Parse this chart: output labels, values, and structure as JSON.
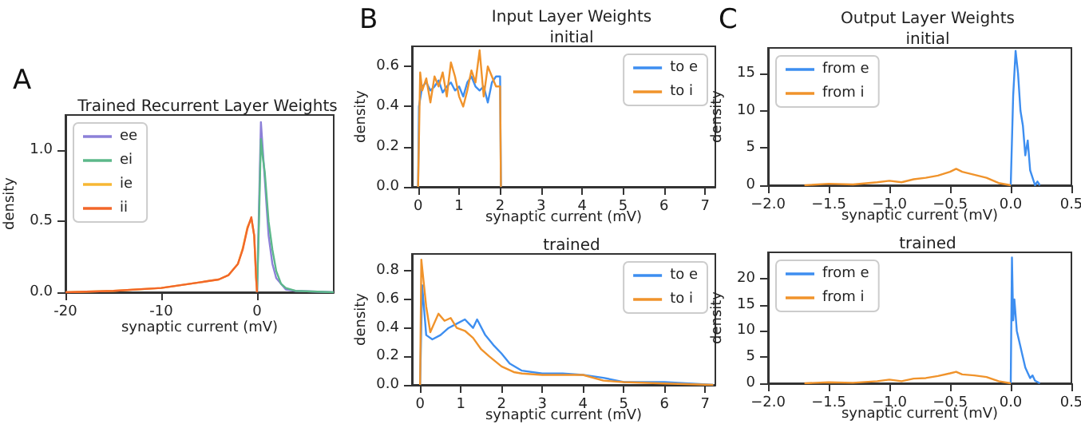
{
  "chart_data": [
    {
      "type": "line",
      "title": "Trained Recurrent Layer Weights",
      "xlabel": "synaptic current (mV)",
      "ylabel": "density",
      "annotations": [
        "A"
      ],
      "legend": "top left",
      "grid": false,
      "xlim": [
        -20,
        8
      ],
      "xticks": [
        -20,
        -10,
        0
      ],
      "ylim": [
        0,
        1.25
      ],
      "yticks": [
        {
          "value": 0,
          "label": "0.0"
        },
        {
          "value": 0.5,
          "label": "0.5"
        },
        {
          "value": 1,
          "label": "1.0"
        }
      ],
      "series": [
        {
          "name": "ee",
          "color": "#8c80d8",
          "x": [
            0,
            0.2,
            0.4,
            0.6,
            0.8,
            1.2,
            1.6,
            2,
            3,
            4,
            8
          ],
          "values": [
            0,
            0.6,
            1.2,
            1.0,
            0.8,
            0.4,
            0.2,
            0.1,
            0.02,
            0.01,
            0
          ]
        },
        {
          "name": "ei",
          "color": "#5cb88a",
          "x": [
            0,
            0.2,
            0.4,
            0.6,
            0.8,
            1.2,
            1.6,
            2,
            2.5,
            3,
            4,
            8
          ],
          "values": [
            0,
            0.5,
            1.08,
            0.95,
            0.85,
            0.5,
            0.3,
            0.15,
            0.06,
            0.03,
            0.01,
            0
          ]
        },
        {
          "name": "ie",
          "color": "#f7b733",
          "x": [
            -20,
            -15,
            -10,
            -8,
            -6,
            -5,
            -4,
            -3,
            -2,
            -1.5,
            -1,
            -0.6,
            -0.3,
            -0.1,
            0
          ],
          "values": [
            0,
            0.01,
            0.03,
            0.05,
            0.07,
            0.08,
            0.09,
            0.12,
            0.2,
            0.31,
            0.46,
            0.52,
            0.4,
            0.1,
            0
          ]
        },
        {
          "name": "ii",
          "color": "#f2672a",
          "x": [
            -20,
            -15,
            -10,
            -8,
            -6,
            -5,
            -4,
            -3,
            -2,
            -1.5,
            -1,
            -0.6,
            -0.3,
            -0.1,
            0
          ],
          "values": [
            0,
            0.01,
            0.03,
            0.05,
            0.07,
            0.08,
            0.09,
            0.12,
            0.2,
            0.3,
            0.45,
            0.53,
            0.4,
            0.1,
            0
          ]
        }
      ]
    },
    {
      "type": "line",
      "title": "Input Layer Weights",
      "subtitle": "initial",
      "xlabel": "synaptic current (mV)",
      "ylabel": "density",
      "annotations": [
        "B"
      ],
      "legend": "top right",
      "grid": false,
      "xlim": [
        -0.15,
        7.25
      ],
      "xticks": [
        0,
        1,
        2,
        3,
        4,
        5,
        6,
        7
      ],
      "ylim": [
        0,
        0.7
      ],
      "yticks": [
        {
          "value": 0,
          "label": "0.0"
        },
        {
          "value": 0.2,
          "label": "0.2"
        },
        {
          "value": 0.4,
          "label": "0.4"
        },
        {
          "value": 0.6,
          "label": "0.6"
        }
      ],
      "series": [
        {
          "name": "to e",
          "color": "#3d8ef0",
          "x": [
            0,
            0.02,
            0.1,
            0.2,
            0.3,
            0.4,
            0.5,
            0.6,
            0.7,
            0.8,
            0.9,
            1.0,
            1.1,
            1.2,
            1.3,
            1.4,
            1.5,
            1.6,
            1.7,
            1.8,
            1.9,
            2.0,
            2.02
          ],
          "values": [
            0,
            0.4,
            0.5,
            0.52,
            0.48,
            0.5,
            0.53,
            0.47,
            0.5,
            0.52,
            0.48,
            0.5,
            0.45,
            0.52,
            0.55,
            0.5,
            0.48,
            0.5,
            0.42,
            0.52,
            0.55,
            0.55,
            0
          ]
        },
        {
          "name": "to i",
          "color": "#f0932b",
          "x": [
            0,
            0.05,
            0.1,
            0.2,
            0.3,
            0.4,
            0.5,
            0.6,
            0.7,
            0.8,
            0.9,
            1.0,
            1.1,
            1.2,
            1.3,
            1.4,
            1.5,
            1.6,
            1.7,
            1.8,
            1.9,
            2.0,
            2.02
          ],
          "values": [
            0,
            0.57,
            0.48,
            0.54,
            0.42,
            0.55,
            0.5,
            0.57,
            0.45,
            0.62,
            0.55,
            0.45,
            0.4,
            0.48,
            0.58,
            0.52,
            0.68,
            0.45,
            0.6,
            0.55,
            0.5,
            0.5,
            0
          ]
        }
      ]
    },
    {
      "type": "line",
      "title": "trained",
      "xlabel": "synaptic current (mV)",
      "ylabel": "density",
      "legend": "top right",
      "grid": false,
      "xlim": [
        -0.2,
        7.25
      ],
      "xticks": [
        0,
        1,
        2,
        3,
        4,
        5,
        6,
        7
      ],
      "ylim": [
        0,
        0.92
      ],
      "yticks": [
        {
          "value": 0,
          "label": "0.0"
        },
        {
          "value": 0.2,
          "label": "0.2"
        },
        {
          "value": 0.4,
          "label": "0.4"
        },
        {
          "value": 0.6,
          "label": "0.6"
        },
        {
          "value": 0.8,
          "label": "0.8"
        }
      ],
      "series": [
        {
          "name": "to e",
          "color": "#3d8ef0",
          "x": [
            0,
            0.05,
            0.15,
            0.3,
            0.5,
            0.7,
            0.9,
            1.1,
            1.3,
            1.4,
            1.6,
            1.8,
            2,
            2.2,
            2.5,
            3,
            3.5,
            4,
            4.5,
            5,
            6,
            7.2
          ],
          "values": [
            0,
            0.7,
            0.35,
            0.32,
            0.35,
            0.4,
            0.43,
            0.46,
            0.4,
            0.46,
            0.35,
            0.28,
            0.22,
            0.15,
            0.1,
            0.08,
            0.08,
            0.07,
            0.05,
            0.02,
            0.02,
            0
          ]
        },
        {
          "name": "to i",
          "color": "#f0932b",
          "x": [
            0,
            0.03,
            0.15,
            0.25,
            0.45,
            0.6,
            0.75,
            0.9,
            1.1,
            1.3,
            1.5,
            1.7,
            2,
            2.3,
            2.5,
            3,
            3.5,
            4,
            4.5,
            5,
            6,
            7.2
          ],
          "values": [
            0,
            0.88,
            0.55,
            0.37,
            0.5,
            0.45,
            0.47,
            0.4,
            0.38,
            0.33,
            0.25,
            0.2,
            0.13,
            0.09,
            0.08,
            0.07,
            0.07,
            0.07,
            0.03,
            0.02,
            0.01,
            0
          ]
        }
      ]
    },
    {
      "type": "line",
      "title": "Output Layer Weights",
      "subtitle": "initial",
      "xlabel": "synaptic current (mV)",
      "ylabel": "density",
      "annotations": [
        "C"
      ],
      "legend": "top left",
      "grid": false,
      "xlim": [
        -2,
        0.5
      ],
      "xticks": [
        {
          "value": -2,
          "label": "−2.0"
        },
        {
          "value": -1.5,
          "label": "−1.5"
        },
        {
          "value": -1,
          "label": "−1.0"
        },
        {
          "value": -0.5,
          "label": "−0.5"
        },
        {
          "value": 0,
          "label": "0.0"
        },
        {
          "value": 0.5,
          "label": "0.5"
        }
      ],
      "ylim": [
        0,
        18.4
      ],
      "yticks": [
        0,
        5,
        10,
        15
      ],
      "series": [
        {
          "name": "from e",
          "color": "#3d8ef0",
          "x": [
            0,
            0.02,
            0.04,
            0.06,
            0.08,
            0.1,
            0.12,
            0.14,
            0.16,
            0.18,
            0.2,
            0.22,
            0.24
          ],
          "values": [
            0,
            12,
            18,
            15,
            10,
            8,
            4,
            6,
            2,
            1,
            0,
            0.5,
            0
          ]
        },
        {
          "name": "from i",
          "color": "#f0932b",
          "x": [
            -1.7,
            -1.5,
            -1.3,
            -1.1,
            -1.0,
            -0.9,
            -0.8,
            -0.7,
            -0.6,
            -0.5,
            -0.45,
            -0.4,
            -0.3,
            -0.2,
            -0.1,
            0
          ],
          "values": [
            0,
            0.2,
            0.1,
            0.4,
            0.6,
            0.4,
            0.8,
            1.0,
            1.3,
            1.8,
            2.2,
            1.8,
            1.4,
            1.0,
            0.3,
            0
          ]
        }
      ]
    },
    {
      "type": "line",
      "title": "trained",
      "xlabel": "synaptic current (mV)",
      "ylabel": "density",
      "legend": "top left",
      "grid": false,
      "xlim": [
        -2,
        0.5
      ],
      "xticks": [
        {
          "value": -2,
          "label": "−2.0"
        },
        {
          "value": -1.5,
          "label": "−1.5"
        },
        {
          "value": -1,
          "label": "−1.0"
        },
        {
          "value": -0.5,
          "label": "−0.5"
        },
        {
          "value": 0,
          "label": "0.0"
        },
        {
          "value": 0.5,
          "label": "0.5"
        }
      ],
      "ylim": [
        0,
        25
      ],
      "yticks": [
        0,
        5,
        10,
        15,
        20
      ],
      "series": [
        {
          "name": "from e",
          "color": "#3d8ef0",
          "x": [
            0,
            0.01,
            0.02,
            0.03,
            0.05,
            0.07,
            0.1,
            0.12,
            0.14,
            0.16,
            0.18,
            0.2,
            0.24
          ],
          "values": [
            0,
            24,
            12,
            16,
            10,
            8,
            5,
            3,
            2,
            1,
            1.5,
            0.5,
            0
          ]
        },
        {
          "name": "from i",
          "color": "#f0932b",
          "x": [
            -1.7,
            -1.5,
            -1.3,
            -1.1,
            -1.0,
            -0.9,
            -0.8,
            -0.7,
            -0.6,
            -0.5,
            -0.45,
            -0.4,
            -0.3,
            -0.2,
            -0.1,
            0
          ],
          "values": [
            0,
            0.2,
            0.1,
            0.4,
            0.7,
            0.4,
            0.9,
            1.0,
            1.4,
            1.9,
            2.2,
            1.7,
            1.5,
            1.2,
            0.4,
            0
          ]
        }
      ]
    }
  ]
}
